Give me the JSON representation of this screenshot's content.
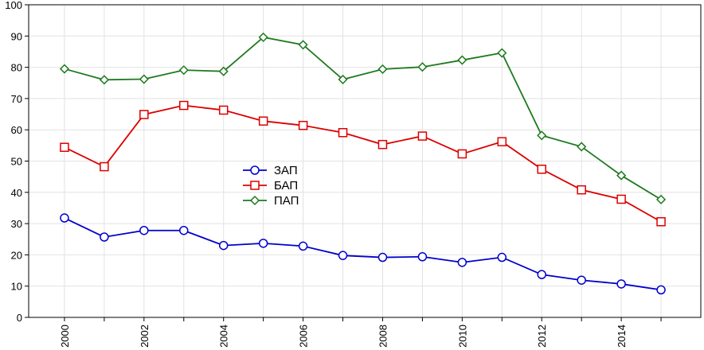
{
  "chart_data": {
    "type": "line",
    "title": "",
    "xlabel": "",
    "ylabel": "",
    "x": [
      2000,
      2001,
      2002,
      2003,
      2004,
      2005,
      2006,
      2007,
      2008,
      2009,
      2010,
      2011,
      2012,
      2013,
      2014,
      2015
    ],
    "xlim": [
      1999.1,
      2016.0
    ],
    "ylim": [
      0,
      100
    ],
    "x_ticks": [
      2000,
      2002,
      2004,
      2006,
      2008,
      2010,
      2012,
      2014
    ],
    "x_tick_labels": [
      "2000",
      "2002",
      "2004",
      "2006",
      "2008",
      "2010",
      "2012",
      "2014"
    ],
    "y_ticks": [
      0,
      10,
      20,
      30,
      40,
      50,
      60,
      70,
      80,
      90,
      100
    ],
    "y_tick_labels": [
      "0",
      "10",
      "20",
      "30",
      "40",
      "50",
      "60",
      "70",
      "80",
      "90",
      "100"
    ],
    "x_tick_label_rotation": "vertical",
    "grid": true,
    "legend_position": "center-left",
    "series": [
      {
        "name": "ЗАП",
        "color": "#0000cc",
        "marker": "circle",
        "values": [
          31.8,
          25.7,
          27.8,
          27.8,
          23.0,
          23.7,
          22.8,
          19.8,
          19.2,
          19.4,
          17.6,
          19.2,
          13.7,
          11.9,
          10.7,
          8.8
        ]
      },
      {
        "name": "БАП",
        "color": "#dd0000",
        "marker": "square",
        "values": [
          54.4,
          48.2,
          64.9,
          67.8,
          66.3,
          62.8,
          61.4,
          59.1,
          55.3,
          58.0,
          52.3,
          56.2,
          47.4,
          40.8,
          37.8,
          30.6
        ]
      },
      {
        "name": "ПАП",
        "color": "#1e7a1e",
        "marker": "diamond",
        "values": [
          79.5,
          76.0,
          76.2,
          79.1,
          78.7,
          89.6,
          87.2,
          76.1,
          79.4,
          80.1,
          82.3,
          84.6,
          58.2,
          54.6,
          45.4,
          37.7
        ]
      }
    ]
  }
}
